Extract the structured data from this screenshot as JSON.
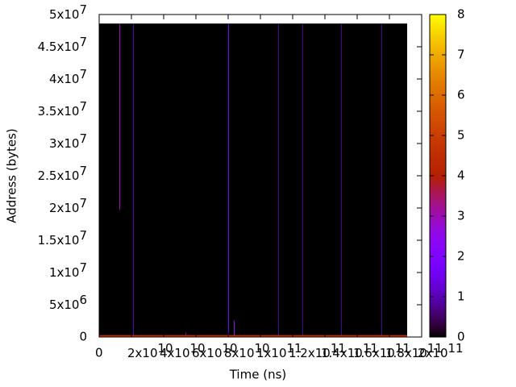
{
  "chart_data": {
    "type": "heatmap",
    "xlabel": "Time (ns)",
    "ylabel": "Address (bytes)",
    "xlim": [
      0,
      200000000000
    ],
    "ylim": [
      0,
      50000000
    ],
    "clim": [
      0,
      8
    ],
    "xticks": [
      0,
      {
        "value": 20000000000,
        "label": "2x10",
        "exponent": "10"
      },
      {
        "value": 40000000000,
        "label": "4x10",
        "exponent": "10"
      },
      {
        "value": 60000000000,
        "label": "6x10",
        "exponent": "10"
      },
      {
        "value": 80000000000,
        "label": "8x10",
        "exponent": "10"
      },
      {
        "value": 100000000000,
        "label": "1x10",
        "exponent": "11"
      },
      {
        "value": 120000000000,
        "label": "1.2x10",
        "exponent": "11"
      },
      {
        "value": 140000000000,
        "label": "1.4x10",
        "exponent": "11"
      },
      {
        "value": 160000000000,
        "label": "1.6x10",
        "exponent": "11"
      },
      {
        "value": 180000000000,
        "label": "1.8x10",
        "exponent": "11"
      },
      {
        "value": 200000000000,
        "label": "2x10",
        "exponent": "11"
      }
    ],
    "yticks": [
      0,
      {
        "value": 5000000,
        "label": "5x10",
        "exponent": "6"
      },
      {
        "value": 10000000,
        "label": "1x10",
        "exponent": "7"
      },
      {
        "value": 15000000,
        "label": "1.5x10",
        "exponent": "7"
      },
      {
        "value": 20000000,
        "label": "2x10",
        "exponent": "7"
      },
      {
        "value": 25000000,
        "label": "2.5x10",
        "exponent": "7"
      },
      {
        "value": 30000000,
        "label": "3x10",
        "exponent": "7"
      },
      {
        "value": 35000000,
        "label": "3.5x10",
        "exponent": "7"
      },
      {
        "value": 40000000,
        "label": "4x10",
        "exponent": "7"
      },
      {
        "value": 45000000,
        "label": "4.5x10",
        "exponent": "7"
      },
      {
        "value": 50000000,
        "label": "5x10",
        "exponent": "7"
      }
    ],
    "cticks": [
      0,
      1,
      2,
      3,
      4,
      5,
      6,
      7,
      8
    ],
    "image_extent": {
      "x": [
        0,
        191000000000
      ],
      "y": [
        0,
        48600000
      ],
      "value": 0
    },
    "streaks": {
      "x": [
        12500000000,
        21000000000,
        80000000000,
        111000000000,
        126000000000,
        150000000000,
        175000000000,
        53500000000,
        83500000000,
        0
      ],
      "x_end": [
        12800000000,
        21300000000,
        80400000000,
        111300000000,
        126300000000,
        150300000000,
        175300000000,
        54000000000,
        84000000000,
        191000000000
      ],
      "y0": [
        19700000,
        0,
        0,
        0,
        0,
        0,
        0,
        0,
        0,
        0
      ],
      "y1": [
        48600000,
        48600000,
        48600000,
        48600000,
        48600000,
        48600000,
        48600000,
        700000,
        2600000,
        300000
      ],
      "values": [
        3,
        1,
        1.5,
        0.8,
        0.8,
        0.8,
        0.8,
        2,
        2.5,
        4.5
      ]
    }
  }
}
